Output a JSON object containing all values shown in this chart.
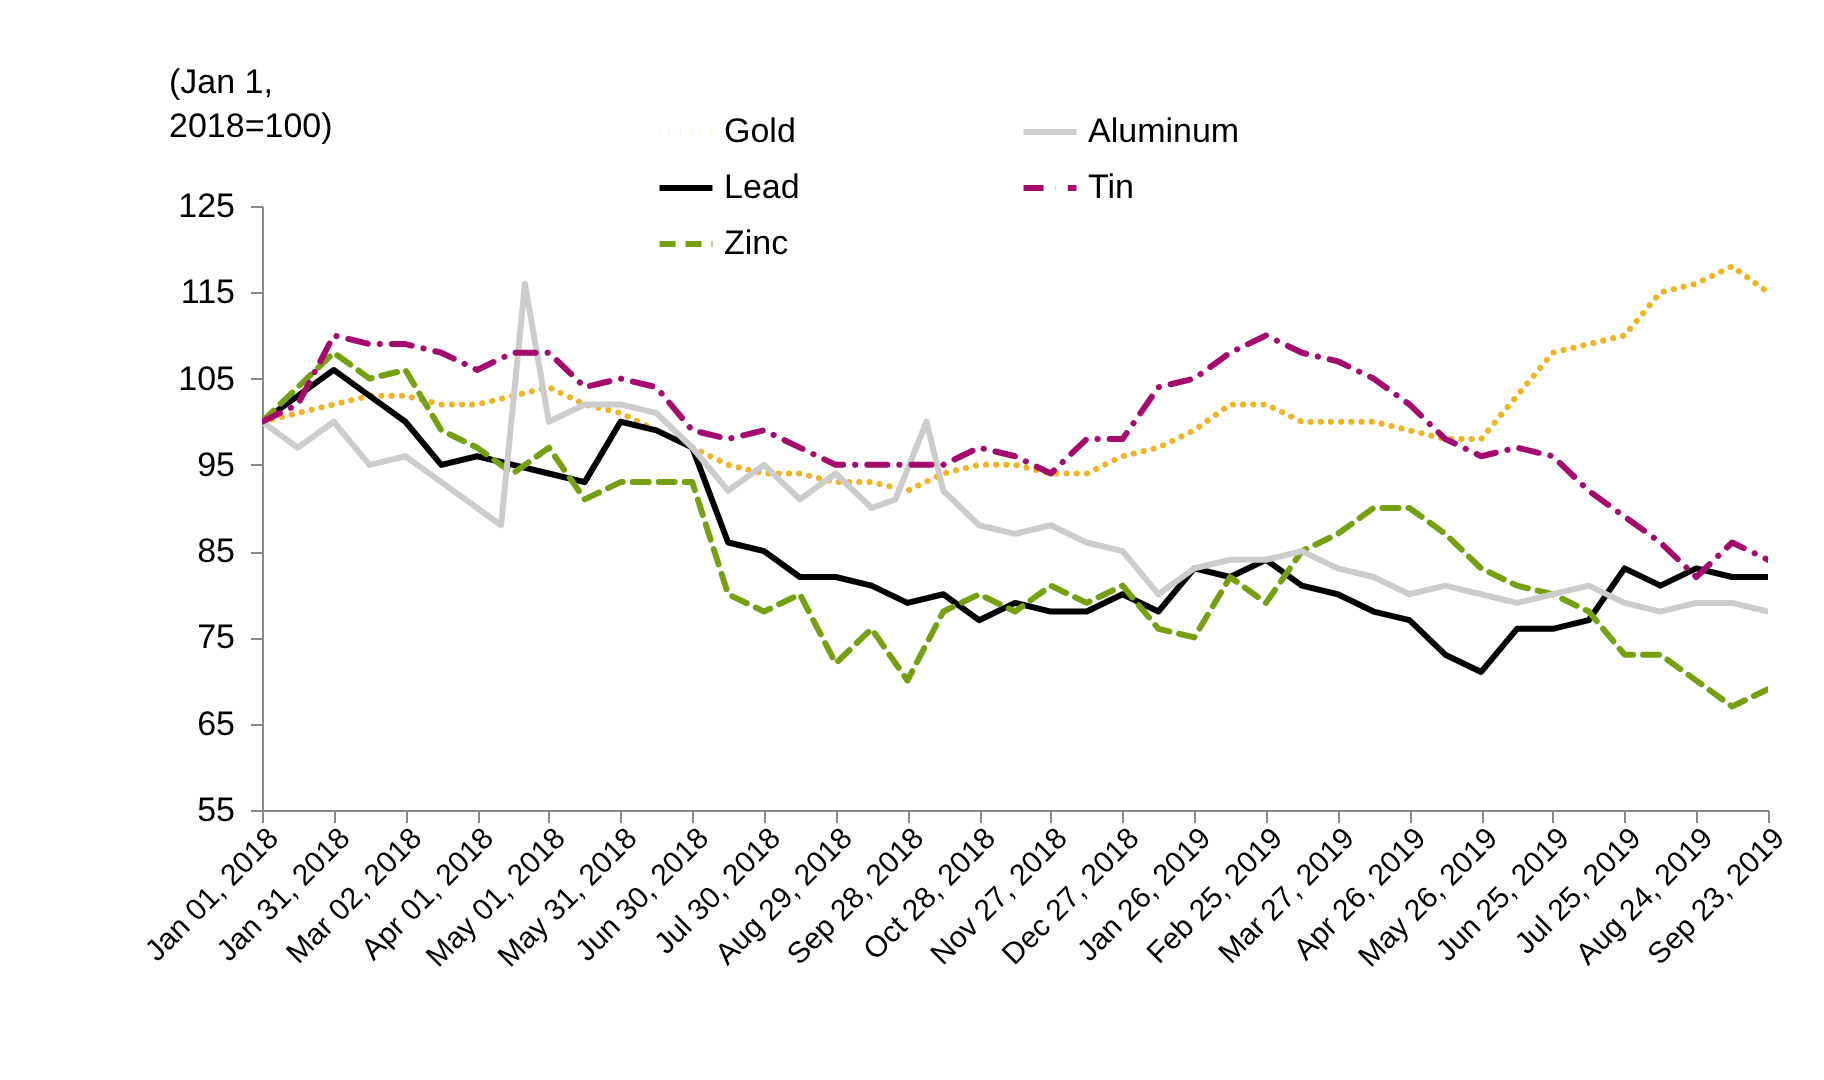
{
  "chart_data": {
    "type": "line",
    "ylabel": "(Jan 1,\n2018=100)",
    "x": [
      "2018-01-01",
      "2018-01-16",
      "2018-01-31",
      "2018-02-15",
      "2018-03-02",
      "2018-03-17",
      "2018-04-01",
      "2018-04-16",
      "2018-05-01",
      "2018-05-16",
      "2018-05-31",
      "2018-06-15",
      "2018-06-30",
      "2018-07-15",
      "2018-07-30",
      "2018-08-14",
      "2018-08-29",
      "2018-09-13",
      "2018-09-28",
      "2018-10-13",
      "2018-10-28",
      "2018-11-12",
      "2018-11-27",
      "2018-12-12",
      "2018-12-27",
      "2019-01-11",
      "2019-01-26",
      "2019-02-10",
      "2019-02-25",
      "2019-03-12",
      "2019-03-27",
      "2019-04-11",
      "2019-04-26",
      "2019-05-11",
      "2019-05-26",
      "2019-06-10",
      "2019-06-25",
      "2019-07-10",
      "2019-07-25",
      "2019-08-09",
      "2019-08-24",
      "2019-09-08",
      "2019-09-23"
    ],
    "series": [
      {
        "name": "Gold",
        "color": "#f0b323",
        "line_style": "dotted",
        "values": [
          100,
          101,
          102,
          103,
          103,
          102,
          102,
          103,
          104,
          102,
          101,
          99,
          97,
          95,
          94,
          94,
          93,
          93,
          92,
          94,
          95,
          95,
          94,
          94,
          96,
          97,
          99,
          102,
          102,
          100,
          100,
          100,
          99,
          98,
          98,
          103,
          108,
          109,
          110,
          115,
          116,
          118,
          115
        ]
      },
      {
        "name": "Lead",
        "color": "#000000",
        "line_style": "solid",
        "values": [
          100,
          103,
          106,
          103,
          100,
          95,
          96,
          95,
          94,
          93,
          100,
          99,
          97,
          86,
          85,
          82,
          82,
          81,
          79,
          80,
          77,
          79,
          78,
          78,
          80,
          78,
          83,
          82,
          84,
          81,
          80,
          78,
          77,
          73,
          71,
          76,
          76,
          77,
          83,
          81,
          83,
          82,
          82
        ]
      },
      {
        "name": "Zinc",
        "color": "#76a012",
        "line_style": "dashed",
        "values": [
          100,
          104,
          108,
          105,
          106,
          99,
          97,
          94,
          97,
          91,
          93,
          93,
          93,
          80,
          78,
          80,
          72,
          76,
          70,
          78,
          80,
          78,
          81,
          79,
          81,
          76,
          75,
          82,
          79,
          85,
          87,
          90,
          90,
          87,
          83,
          81,
          80,
          78,
          73,
          73,
          70,
          67,
          69
        ]
      },
      {
        "name": "Aluminum",
        "color": "#cccccc",
        "line_style": "solid",
        "x": [
          "2018-01-01",
          "2018-01-16",
          "2018-01-31",
          "2018-02-15",
          "2018-03-02",
          "2018-03-17",
          "2018-04-01",
          "2018-04-11",
          "2018-04-21",
          "2018-05-01",
          "2018-05-16",
          "2018-05-31",
          "2018-06-15",
          "2018-06-30",
          "2018-07-15",
          "2018-07-30",
          "2018-08-14",
          "2018-08-29",
          "2018-09-13",
          "2018-09-23",
          "2018-10-06",
          "2018-10-13",
          "2018-10-28",
          "2018-11-12",
          "2018-11-27",
          "2018-12-12",
          "2018-12-27",
          "2019-01-11",
          "2019-01-26",
          "2019-02-10",
          "2019-02-25",
          "2019-03-12",
          "2019-03-27",
          "2019-04-11",
          "2019-04-26",
          "2019-05-11",
          "2019-05-26",
          "2019-06-10",
          "2019-06-25",
          "2019-07-10",
          "2019-07-25",
          "2019-08-09",
          "2019-08-24",
          "2019-09-08",
          "2019-09-23"
        ],
        "values": [
          100,
          97,
          100,
          95,
          96,
          93,
          90,
          88,
          116,
          100,
          102,
          102,
          101,
          97,
          92,
          95,
          91,
          94,
          90,
          91,
          100,
          92,
          88,
          87,
          88,
          86,
          85,
          80,
          83,
          84,
          84,
          85,
          83,
          82,
          80,
          81,
          80,
          79,
          80,
          81,
          79,
          78,
          79,
          79,
          78
        ]
      },
      {
        "name": "Tin",
        "color": "#a50b6e",
        "line_style": "dashdot",
        "values": [
          100,
          102,
          110,
          109,
          109,
          108,
          106,
          108,
          108,
          104,
          105,
          104,
          99,
          98,
          99,
          97,
          95,
          95,
          95,
          95,
          97,
          96,
          94,
          98,
          98,
          104,
          105,
          108,
          110,
          108,
          107,
          105,
          102,
          98,
          96,
          97,
          96,
          92,
          89,
          86,
          82,
          86,
          84
        ]
      }
    ],
    "xlim": [
      "2018-01-01",
      "2019-09-23"
    ],
    "xticks": [
      {
        "value": "2018-01-01",
        "label": "Jan 01, 2018"
      },
      {
        "value": "2018-01-31",
        "label": "Jan 31, 2018"
      },
      {
        "value": "2018-03-02",
        "label": "Mar 02, 2018"
      },
      {
        "value": "2018-04-01",
        "label": "Apr 01, 2018"
      },
      {
        "value": "2018-05-01",
        "label": "May 01, 2018"
      },
      {
        "value": "2018-05-31",
        "label": "May 31, 2018"
      },
      {
        "value": "2018-06-30",
        "label": "Jun 30, 2018"
      },
      {
        "value": "2018-07-30",
        "label": "Jul 30, 2018"
      },
      {
        "value": "2018-08-29",
        "label": "Aug 29, 2018"
      },
      {
        "value": "2018-09-28",
        "label": "Sep 28, 2018"
      },
      {
        "value": "2018-10-28",
        "label": "Oct 28, 2018"
      },
      {
        "value": "2018-11-27",
        "label": "Nov 27, 2018"
      },
      {
        "value": "2018-12-27",
        "label": "Dec 27, 2018"
      },
      {
        "value": "2019-01-26",
        "label": "Jan 26, 2019"
      },
      {
        "value": "2019-02-25",
        "label": "Feb 25, 2019"
      },
      {
        "value": "2019-03-27",
        "label": "Mar 27, 2019"
      },
      {
        "value": "2019-04-26",
        "label": "Apr 26, 2019"
      },
      {
        "value": "2019-05-26",
        "label": "May 26, 2019"
      },
      {
        "value": "2019-06-25",
        "label": "Jun 25, 2019"
      },
      {
        "value": "2019-07-25",
        "label": "Jul 25, 2019"
      },
      {
        "value": "2019-08-24",
        "label": "Aug 24, 2019"
      },
      {
        "value": "2019-09-23",
        "label": "Sep 23, 2019"
      }
    ],
    "ylim": [
      55,
      125
    ],
    "yticks": [
      55,
      65,
      75,
      85,
      95,
      105,
      115,
      125
    ],
    "grid": false,
    "legend": "top",
    "marker": "none"
  }
}
